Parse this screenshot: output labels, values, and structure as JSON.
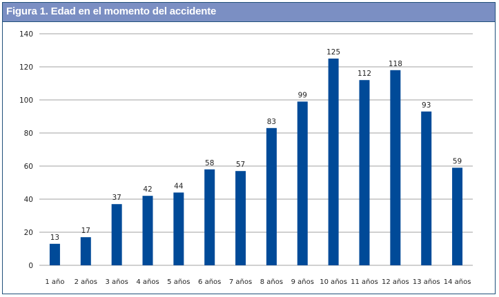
{
  "title": "Figura 1. Edad en el momento del accidente",
  "colors": {
    "bar": "#004a98",
    "titlebar": "#7b8fc3",
    "border": "#1f4e79",
    "grid": "#a0a0a0"
  },
  "chart_data": {
    "type": "bar",
    "title": "Figura 1. Edad en el momento del accidente",
    "xlabel": "",
    "ylabel": "",
    "categories": [
      "1 año",
      "2 años",
      "3 años",
      "4 años",
      "5 años",
      "6 años",
      "7 años",
      "8 años",
      "9 años",
      "10 años",
      "11 años",
      "12 años",
      "13 años",
      "14 años"
    ],
    "values": [
      13,
      17,
      37,
      42,
      44,
      58,
      57,
      83,
      99,
      125,
      112,
      118,
      93,
      59
    ],
    "yticks": [
      0,
      20,
      40,
      60,
      80,
      100,
      120,
      140
    ],
    "ylim": [
      0,
      140
    ],
    "grid": true,
    "legend": null,
    "data_labels": true
  }
}
